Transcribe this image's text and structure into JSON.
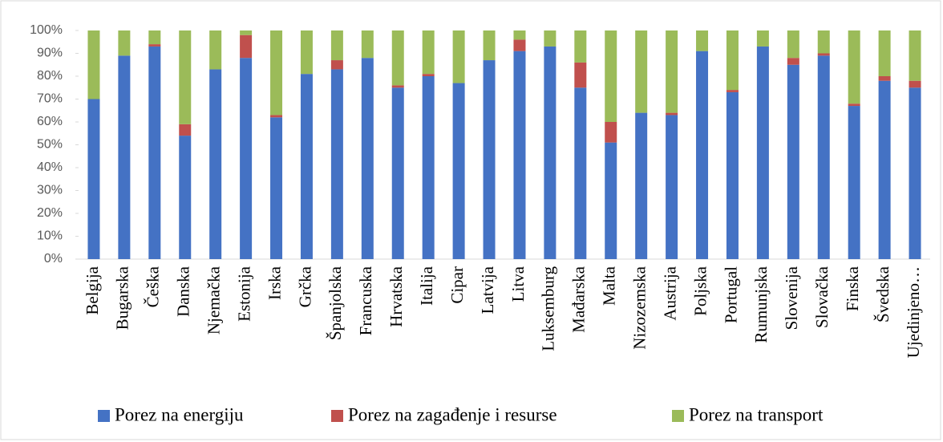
{
  "chart_data": {
    "type": "stacked_bar",
    "categories": [
      "Belgija",
      "Bugarska",
      "Češka",
      "Danska",
      "Njemačka",
      "Estonija",
      "Irska",
      "Grčka",
      "Španjolska",
      "Francuska",
      "Hrvatska",
      "Italija",
      "Cipar",
      "Latvija",
      "Litva",
      "Luksemburg",
      "Mađarska",
      "Malta",
      "Nizozemska",
      "Austrija",
      "Poljska",
      "Portugal",
      "Rumunjska",
      "Slovenija",
      "Slovačka",
      "Finska",
      "Švedska",
      "Ujedinjeno…"
    ],
    "series": [
      {
        "name": "Porez na energiju",
        "color": "#4472c4",
        "values": [
          70,
          89,
          93,
          54,
          83,
          88,
          62,
          81,
          83,
          88,
          75,
          80,
          77,
          87,
          91,
          93,
          75,
          51,
          64,
          63,
          91,
          73,
          93,
          85,
          89,
          67,
          78,
          75
        ]
      },
      {
        "name": "Porez na zagađenje i resurse",
        "color": "#c0504d",
        "values": [
          0,
          0,
          1,
          5,
          0,
          10,
          1,
          0,
          4,
          0,
          1,
          1,
          0,
          0,
          5,
          0,
          11,
          9,
          0,
          1,
          0,
          1,
          0,
          3,
          1,
          1,
          2,
          3
        ]
      },
      {
        "name": "Porez na transport",
        "color": "#9bbb59",
        "values": [
          30,
          11,
          6,
          41,
          17,
          2,
          37,
          19,
          13,
          12,
          24,
          19,
          23,
          13,
          4,
          7,
          14,
          40,
          36,
          36,
          9,
          26,
          7,
          12,
          10,
          32,
          20,
          22
        ]
      }
    ],
    "ylim": [
      0,
      100
    ],
    "yticks": [
      {
        "value": 0,
        "label": "0%"
      },
      {
        "value": 10,
        "label": "10%"
      },
      {
        "value": 20,
        "label": "20%"
      },
      {
        "value": 30,
        "label": "30%"
      },
      {
        "value": 40,
        "label": "40%"
      },
      {
        "value": 50,
        "label": "50%"
      },
      {
        "value": 60,
        "label": "60%"
      },
      {
        "value": 70,
        "label": "70%"
      },
      {
        "value": 80,
        "label": "80%"
      },
      {
        "value": 90,
        "label": "90%"
      },
      {
        "value": 100,
        "label": "100%"
      }
    ],
    "legend": "bottom"
  }
}
